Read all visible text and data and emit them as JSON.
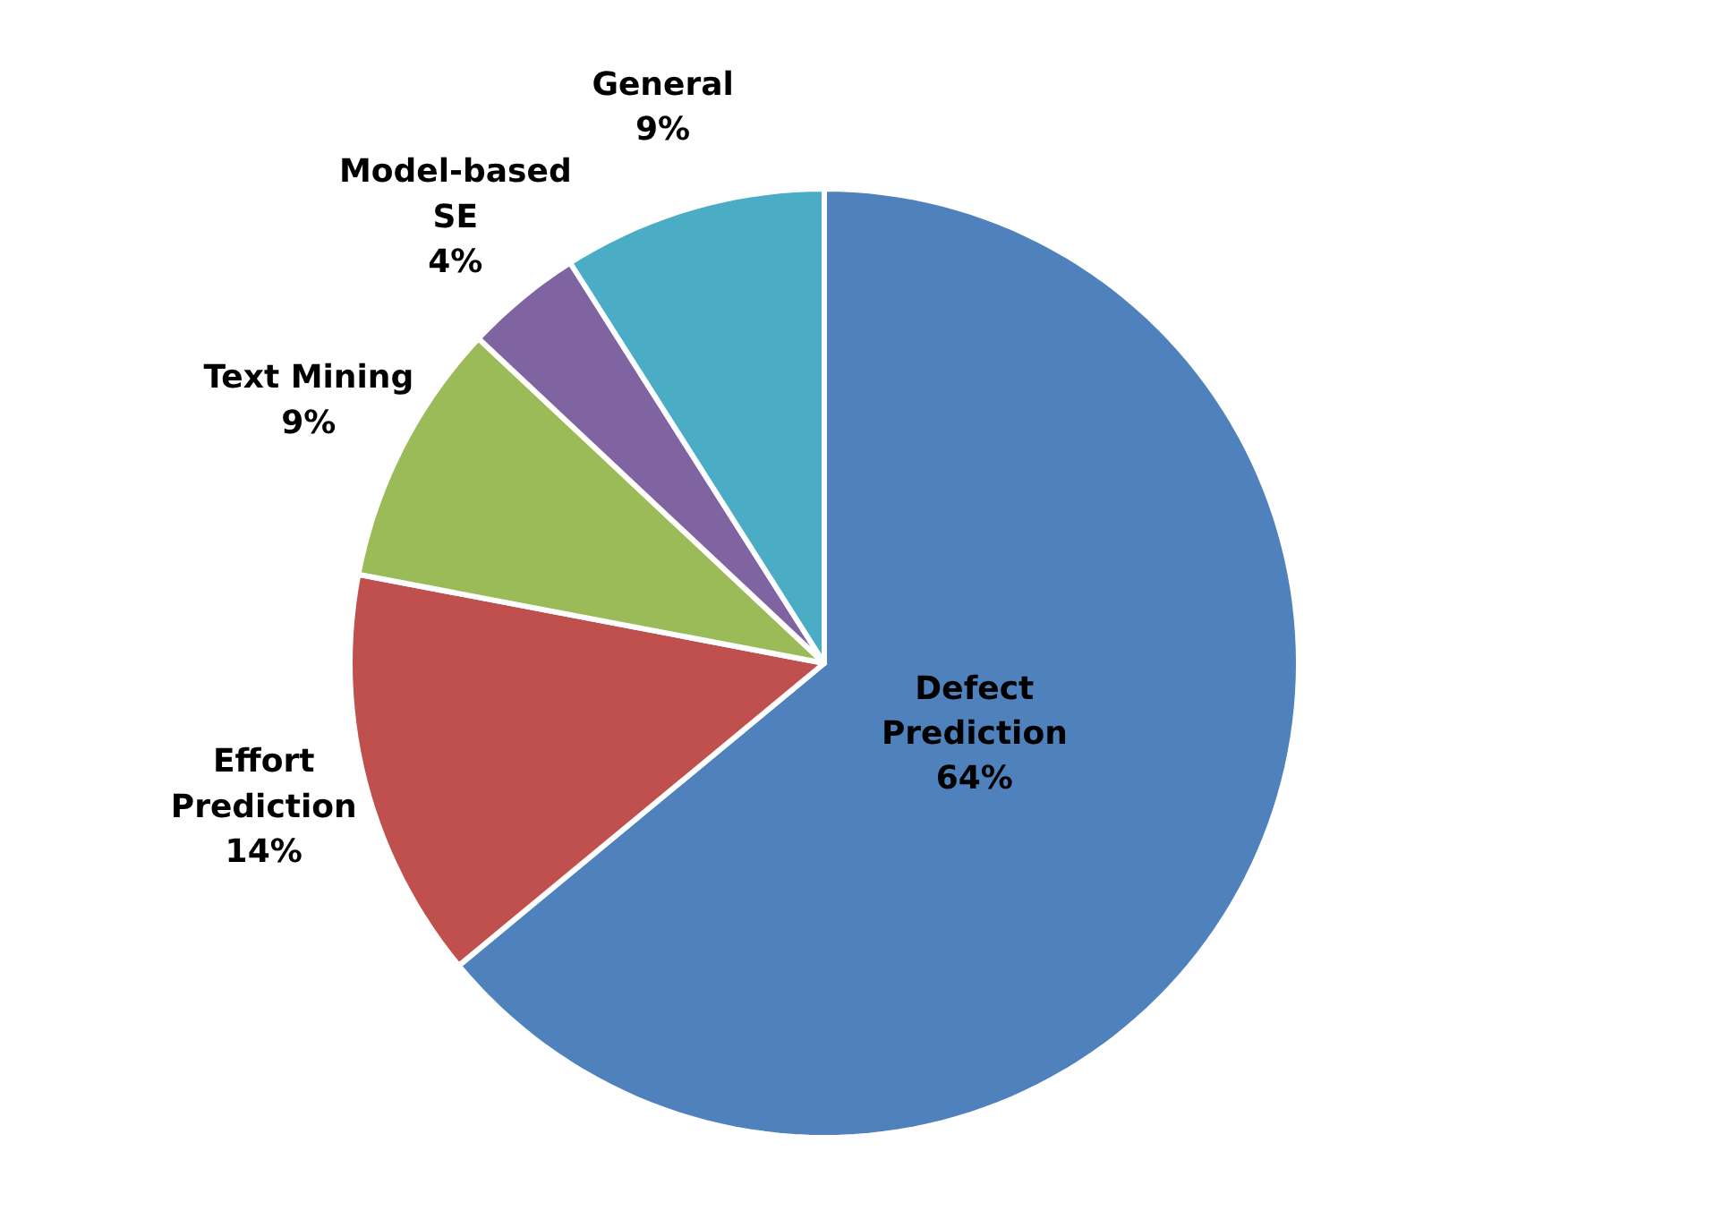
{
  "chart_data": {
    "type": "pie",
    "categories": [
      "Defect\nPrediction",
      "Effort\nPrediction",
      "Text Mining",
      "Model-based\nSE",
      "General"
    ],
    "values": [
      64,
      14,
      9,
      4,
      9
    ],
    "value_labels": [
      "64%",
      "14%",
      "9%",
      "4%",
      "9%"
    ],
    "colors": [
      "#4f81bd",
      "#c0504d",
      "#9bbb59",
      "#8064a2",
      "#4bacc6"
    ]
  }
}
